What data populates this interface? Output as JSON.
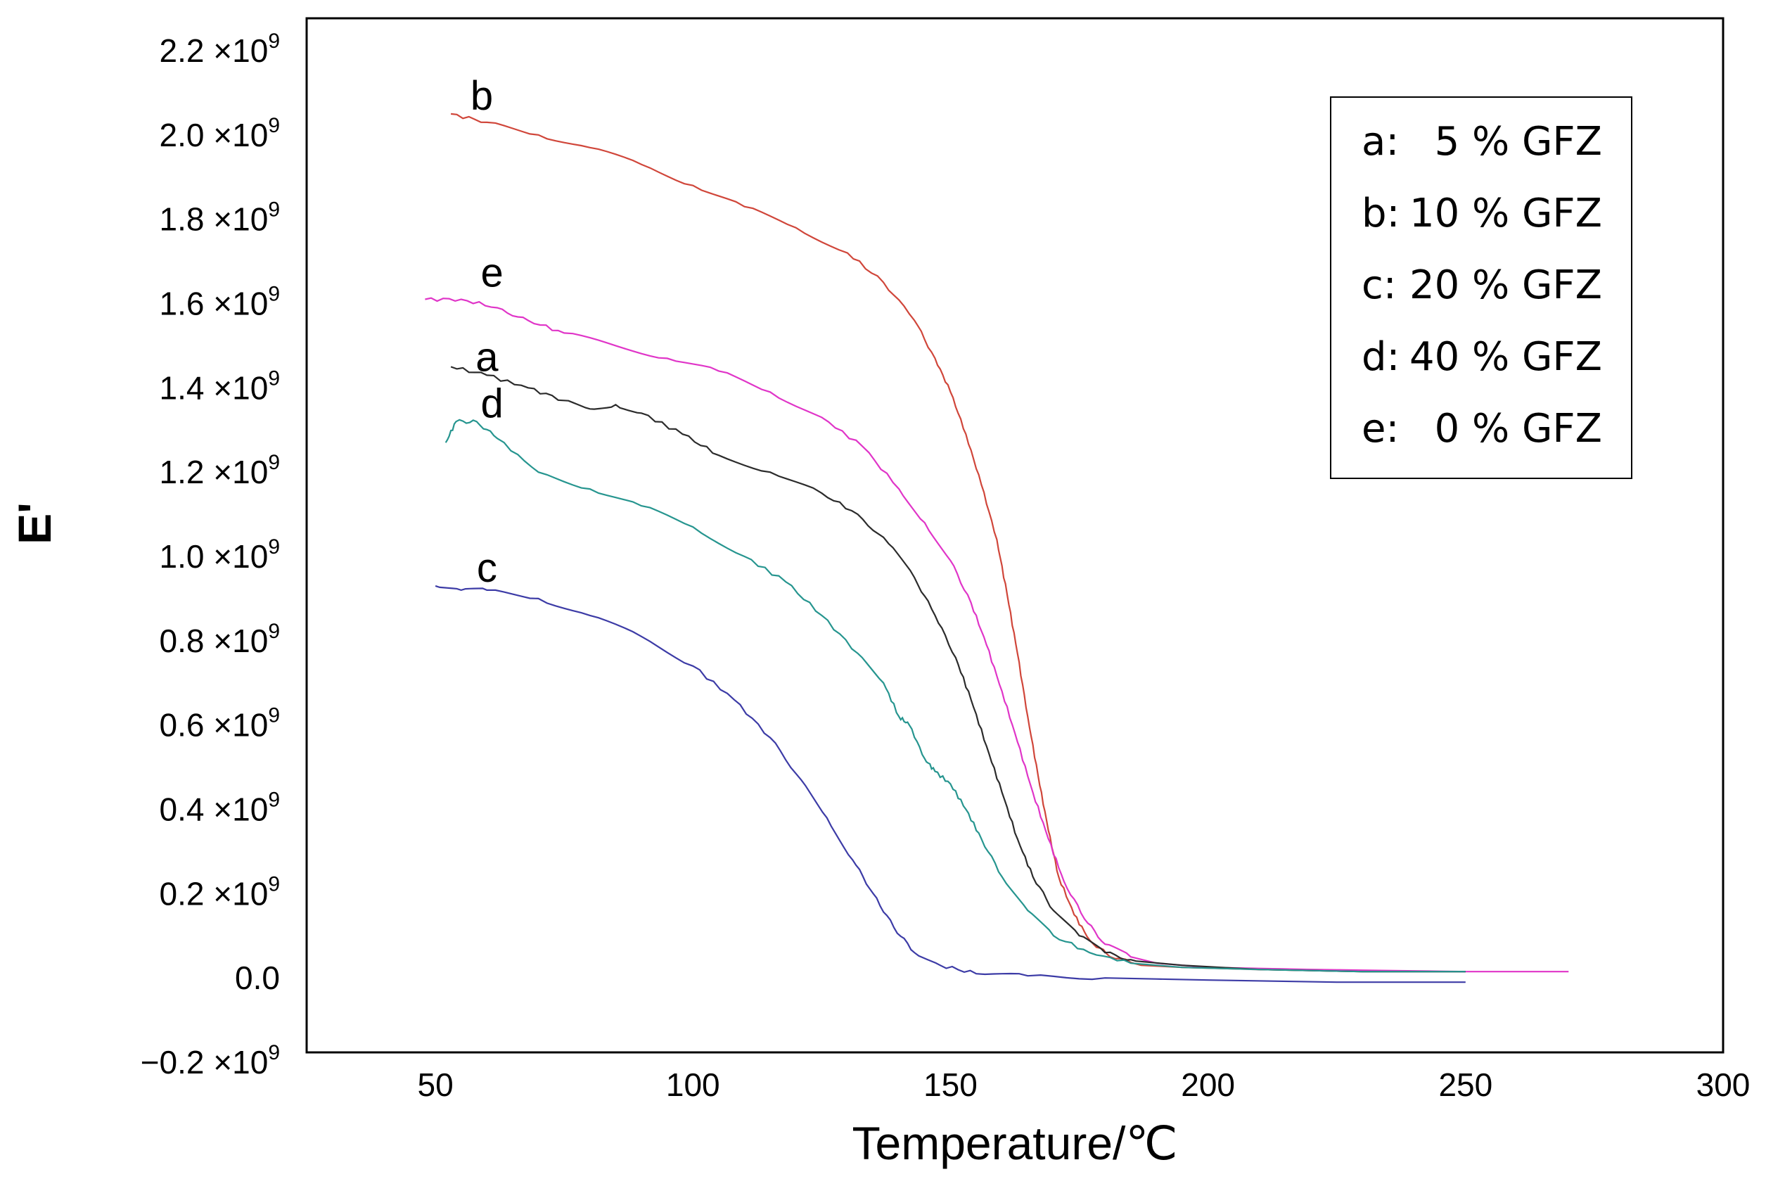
{
  "chart_data": {
    "type": "line",
    "title": "",
    "xlabel": "Temperature/℃",
    "ylabel": "E'",
    "xlim": [
      25,
      300
    ],
    "ylim": [
      -0.2,
      2.2
    ],
    "y_unit_multiplier": "×10^9",
    "xticks": [
      {
        "value": 50,
        "label": "50"
      },
      {
        "value": 100,
        "label": "100"
      },
      {
        "value": 150,
        "label": "150"
      },
      {
        "value": 200,
        "label": "200"
      },
      {
        "value": 250,
        "label": "250"
      },
      {
        "value": 300,
        "label": "300"
      }
    ],
    "yticks": [
      {
        "value": 2.2,
        "mantissa": "2.2",
        "times": "×10",
        "exp": "9"
      },
      {
        "value": 2.0,
        "mantissa": "2.0",
        "times": "×10",
        "exp": "9"
      },
      {
        "value": 1.8,
        "mantissa": "1.8",
        "times": "×10",
        "exp": "9"
      },
      {
        "value": 1.6,
        "mantissa": "1.6",
        "times": "×10",
        "exp": "9"
      },
      {
        "value": 1.4,
        "mantissa": "1.4",
        "times": "×10",
        "exp": "9"
      },
      {
        "value": 1.2,
        "mantissa": "1.2",
        "times": "×10",
        "exp": "9"
      },
      {
        "value": 1.0,
        "mantissa": "1.0",
        "times": "×10",
        "exp": "9"
      },
      {
        "value": 0.8,
        "mantissa": "0.8",
        "times": "×10",
        "exp": "9"
      },
      {
        "value": 0.6,
        "mantissa": "0.6",
        "times": "×10",
        "exp": "9"
      },
      {
        "value": 0.4,
        "mantissa": "0.4",
        "times": "×10",
        "exp": "9"
      },
      {
        "value": 0.2,
        "mantissa": "0.2",
        "times": "×10",
        "exp": "9"
      },
      {
        "value": 0.0,
        "mantissa": "0.0",
        "times": "",
        "exp": ""
      },
      {
        "value": -0.2,
        "mantissa": "−0.2",
        "times": "×10",
        "exp": "9"
      }
    ],
    "legend": {
      "position": "top-right",
      "entries": [
        {
          "key": "a:",
          "text": "5 % GFZ"
        },
        {
          "key": "b:",
          "text": "10 % GFZ"
        },
        {
          "key": "c:",
          "text": "20 % GFZ"
        },
        {
          "key": "d:",
          "text": "40 % GFZ"
        },
        {
          "key": "e:",
          "text": "0 % GFZ"
        }
      ]
    },
    "series": [
      {
        "id": "b",
        "name": "10 % GFZ",
        "label": "b",
        "color": "#d0463a",
        "label_at": [
          59,
          2.06
        ],
        "points": [
          [
            53,
            2.05
          ],
          [
            60,
            2.03
          ],
          [
            70,
            2.0
          ],
          [
            80,
            1.97
          ],
          [
            90,
            1.93
          ],
          [
            100,
            1.88
          ],
          [
            110,
            1.83
          ],
          [
            120,
            1.78
          ],
          [
            130,
            1.72
          ],
          [
            137,
            1.65
          ],
          [
            143,
            1.56
          ],
          [
            147,
            1.47
          ],
          [
            150,
            1.39
          ],
          [
            153,
            1.29
          ],
          [
            156,
            1.17
          ],
          [
            159,
            1.04
          ],
          [
            161,
            0.91
          ],
          [
            163,
            0.77
          ],
          [
            165,
            0.62
          ],
          [
            167,
            0.48
          ],
          [
            169,
            0.35
          ],
          [
            171,
            0.24
          ],
          [
            174,
            0.15
          ],
          [
            177,
            0.09
          ],
          [
            181,
            0.05
          ],
          [
            187,
            0.03
          ],
          [
            195,
            0.025
          ],
          [
            210,
            0.02
          ],
          [
            230,
            0.015
          ],
          [
            250,
            0.015
          ]
        ]
      },
      {
        "id": "e",
        "name": "0 % GFZ",
        "label": "e",
        "color": "#e035c8",
        "label_at": [
          61,
          1.64
        ],
        "points": [
          [
            48,
            1.61
          ],
          [
            55,
            1.61
          ],
          [
            62,
            1.59
          ],
          [
            68,
            1.56
          ],
          [
            75,
            1.53
          ],
          [
            85,
            1.5
          ],
          [
            95,
            1.47
          ],
          [
            105,
            1.44
          ],
          [
            115,
            1.39
          ],
          [
            125,
            1.33
          ],
          [
            133,
            1.26
          ],
          [
            140,
            1.16
          ],
          [
            145,
            1.08
          ],
          [
            150,
            0.99
          ],
          [
            154,
            0.89
          ],
          [
            157,
            0.79
          ],
          [
            160,
            0.68
          ],
          [
            163,
            0.56
          ],
          [
            166,
            0.44
          ],
          [
            169,
            0.33
          ],
          [
            172,
            0.23
          ],
          [
            176,
            0.14
          ],
          [
            180,
            0.08
          ],
          [
            185,
            0.05
          ],
          [
            190,
            0.035
          ],
          [
            200,
            0.025
          ],
          [
            220,
            0.02
          ],
          [
            250,
            0.015
          ],
          [
            270,
            0.015
          ]
        ]
      },
      {
        "id": "a",
        "name": "5 % GFZ",
        "label": "a",
        "color": "#2b2b2b",
        "label_at": [
          60,
          1.44
        ],
        "points": [
          [
            53,
            1.45
          ],
          [
            60,
            1.43
          ],
          [
            68,
            1.4
          ],
          [
            75,
            1.37
          ],
          [
            80,
            1.35
          ],
          [
            85,
            1.36
          ],
          [
            90,
            1.34
          ],
          [
            98,
            1.29
          ],
          [
            105,
            1.24
          ],
          [
            115,
            1.2
          ],
          [
            125,
            1.15
          ],
          [
            132,
            1.1
          ],
          [
            138,
            1.03
          ],
          [
            143,
            0.95
          ],
          [
            147,
            0.86
          ],
          [
            151,
            0.76
          ],
          [
            154,
            0.66
          ],
          [
            157,
            0.55
          ],
          [
            160,
            0.44
          ],
          [
            163,
            0.33
          ],
          [
            166,
            0.24
          ],
          [
            170,
            0.16
          ],
          [
            175,
            0.1
          ],
          [
            180,
            0.06
          ],
          [
            186,
            0.04
          ],
          [
            195,
            0.03
          ],
          [
            210,
            0.02
          ],
          [
            230,
            0.015
          ],
          [
            250,
            0.015
          ]
        ]
      },
      {
        "id": "d",
        "name": "40 % GFZ",
        "label": "d",
        "color": "#26958f",
        "label_at": [
          61,
          1.33
        ],
        "points": [
          [
            52,
            1.27
          ],
          [
            54,
            1.32
          ],
          [
            58,
            1.32
          ],
          [
            62,
            1.28
          ],
          [
            70,
            1.2
          ],
          [
            80,
            1.16
          ],
          [
            90,
            1.12
          ],
          [
            100,
            1.07
          ],
          [
            110,
            1.0
          ],
          [
            118,
            0.94
          ],
          [
            125,
            0.86
          ],
          [
            132,
            0.77
          ],
          [
            137,
            0.7
          ],
          [
            140,
            0.62
          ],
          [
            142,
            0.6
          ],
          [
            145,
            0.52
          ],
          [
            147,
            0.49
          ],
          [
            150,
            0.46
          ],
          [
            153,
            0.4
          ],
          [
            156,
            0.33
          ],
          [
            160,
            0.24
          ],
          [
            165,
            0.16
          ],
          [
            170,
            0.1
          ],
          [
            177,
            0.06
          ],
          [
            185,
            0.035
          ],
          [
            195,
            0.025
          ],
          [
            210,
            0.02
          ],
          [
            230,
            0.015
          ],
          [
            250,
            0.015
          ]
        ]
      },
      {
        "id": "c",
        "name": "20 % GFZ",
        "label": "c",
        "color": "#3c3ba6",
        "label_at": [
          60,
          0.94
        ],
        "points": [
          [
            50,
            0.93
          ],
          [
            55,
            0.92
          ],
          [
            60,
            0.92
          ],
          [
            70,
            0.9
          ],
          [
            80,
            0.86
          ],
          [
            90,
            0.81
          ],
          [
            100,
            0.74
          ],
          [
            108,
            0.66
          ],
          [
            115,
            0.57
          ],
          [
            121,
            0.47
          ],
          [
            126,
            0.38
          ],
          [
            131,
            0.28
          ],
          [
            135,
            0.2
          ],
          [
            139,
            0.12
          ],
          [
            143,
            0.06
          ],
          [
            148,
            0.03
          ],
          [
            155,
            0.01
          ],
          [
            165,
            0.005
          ],
          [
            180,
            0.0
          ],
          [
            200,
            -0.005
          ],
          [
            225,
            -0.01
          ],
          [
            250,
            -0.01
          ]
        ]
      }
    ]
  }
}
